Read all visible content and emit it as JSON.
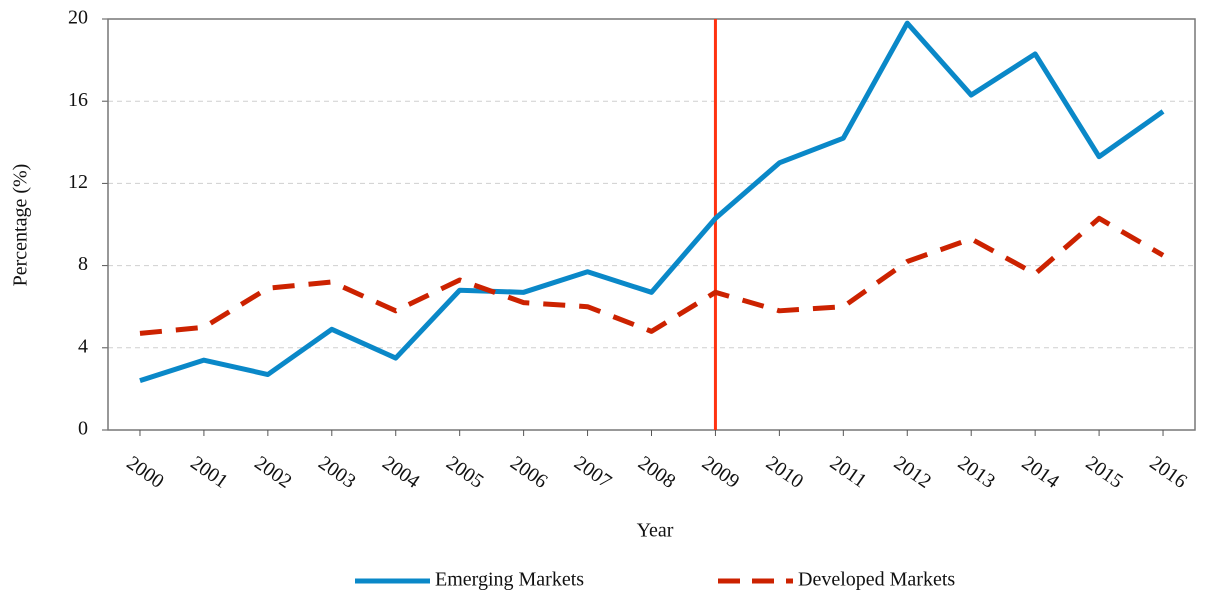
{
  "chart_data": {
    "type": "line",
    "x_label": "Year",
    "y_label": "Percentage (%)",
    "categories": [
      "2000",
      "2001",
      "2002",
      "2003",
      "2004",
      "2005",
      "2006",
      "2007",
      "2008",
      "2009",
      "2010",
      "2011",
      "2012",
      "2013",
      "2014",
      "2015",
      "2016"
    ],
    "series": [
      {
        "name": "Emerging Markets",
        "color": "#0a88c8",
        "dash": "solid",
        "values": [
          2.4,
          3.4,
          2.7,
          4.9,
          3.5,
          6.8,
          6.7,
          7.7,
          6.7,
          10.3,
          13.0,
          14.2,
          19.8,
          16.3,
          18.3,
          13.3,
          15.5
        ]
      },
      {
        "name": "Developed Markets",
        "color": "#cc2200",
        "dash": "dashed",
        "values": [
          4.7,
          5.0,
          6.9,
          7.2,
          5.8,
          7.3,
          6.2,
          6.0,
          4.8,
          6.7,
          5.8,
          6.0,
          8.2,
          9.3,
          7.6,
          10.3,
          8.5
        ]
      }
    ],
    "marker_line": {
      "at": "2009",
      "color": "#ff3311"
    },
    "ylim": [
      0,
      20
    ],
    "yticks": [
      0,
      4,
      8,
      12,
      16,
      20
    ],
    "grid": true,
    "legend": "bottom"
  }
}
